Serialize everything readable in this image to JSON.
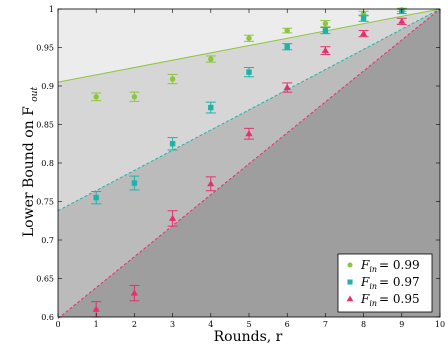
{
  "chart_data": {
    "type": "scatter",
    "xlabel": "Rounds, r",
    "ylabel_main": "Lower Bound on F",
    "ylabel_sub": "out",
    "xlim": [
      0,
      10
    ],
    "ylim": [
      0.6,
      1.0
    ],
    "x_ticks": [
      0,
      1,
      2,
      3,
      4,
      5,
      6,
      7,
      8,
      9,
      10
    ],
    "y_ticks": [
      0.6,
      0.65,
      0.7,
      0.75,
      0.8,
      0.85,
      0.9,
      0.95,
      1.0
    ],
    "y_tick_labels": [
      "0.6",
      "0.65",
      "0.7",
      "0.75",
      "0.8",
      "0.85",
      "0.9",
      "0.95",
      "1"
    ],
    "series": [
      {
        "name": "F_in = 0.99",
        "legend_label": "F",
        "legend_sub": "in",
        "legend_value": "= 0.99",
        "color": "#8cc63f",
        "marker": "circle",
        "x": [
          1,
          2,
          3,
          4,
          5,
          6,
          7,
          8,
          9
        ],
        "y": [
          0.886,
          0.886,
          0.909,
          0.935,
          0.962,
          0.972,
          0.981,
          0.994,
          0.999
        ],
        "err": [
          0.005,
          0.006,
          0.006,
          0.004,
          0.004,
          0.003,
          0.004,
          0.003,
          0.002
        ],
        "bound_y0": 0.905
      },
      {
        "name": "F_in = 0.97",
        "legend_label": "F",
        "legend_sub": "in",
        "legend_value": "= 0.97",
        "color": "#20b2aa",
        "marker": "square",
        "x": [
          1,
          2,
          3,
          4,
          5,
          6,
          7,
          8,
          9
        ],
        "y": [
          0.755,
          0.774,
          0.825,
          0.872,
          0.918,
          0.951,
          0.972,
          0.988,
          0.997
        ],
        "err": [
          0.008,
          0.009,
          0.008,
          0.007,
          0.006,
          0.004,
          0.004,
          0.004,
          0.003
        ],
        "bound_y0": 0.738
      },
      {
        "name": "F_in = 0.95",
        "legend_label": "F",
        "legend_sub": "in",
        "legend_value": "= 0.95",
        "color": "#e5306f",
        "marker": "triangle",
        "x": [
          1,
          2,
          3,
          4,
          5,
          6,
          7,
          8,
          9
        ],
        "y": [
          0.61,
          0.631,
          0.728,
          0.773,
          0.838,
          0.898,
          0.946,
          0.968,
          0.984
        ],
        "err": [
          0.01,
          0.01,
          0.01,
          0.009,
          0.007,
          0.006,
          0.005,
          0.004,
          0.004
        ],
        "bound_y0": 0.598
      }
    ],
    "shading": [
      "#ececec",
      "#d6d6d6",
      "#bbbbbb",
      "#9e9e9e"
    ],
    "legend_position": "bottom-right",
    "grid": false
  }
}
